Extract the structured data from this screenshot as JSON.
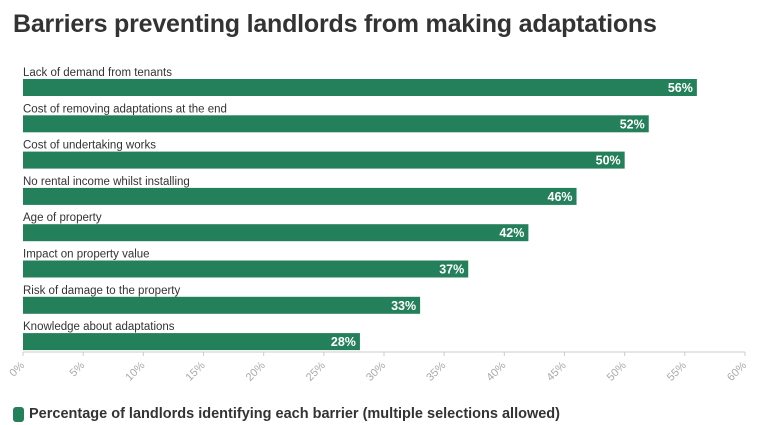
{
  "colors": {
    "bar": "#24805a",
    "text": "#333333",
    "axis": "#aaaaaa"
  },
  "chart_data": {
    "type": "bar",
    "orientation": "horizontal",
    "title": "Barriers preventing landlords from making adaptations",
    "categories": [
      "Lack of demand from tenants",
      "Cost of removing adaptations at the end",
      "Cost of undertaking works",
      "No rental income whilst installing",
      "Age of property",
      "Impact on property value",
      "Risk of damage to the property",
      "Knowledge about adaptations"
    ],
    "series": [
      {
        "name": "Percentage of landlords identifying each barrier (multiple selections allowed)",
        "values": [
          56,
          52,
          50,
          46,
          42,
          37,
          33,
          28
        ],
        "labels": [
          "56%",
          "52%",
          "50%",
          "46%",
          "42%",
          "37%",
          "33%",
          "28%"
        ]
      }
    ],
    "xlim": [
      0,
      60
    ],
    "xticks": [
      "0%",
      "5%",
      "10%",
      "15%",
      "20%",
      "25%",
      "30%",
      "35%",
      "40%",
      "45%",
      "50%",
      "55%",
      "60%"
    ],
    "grid": false,
    "legend": "bottom-left"
  }
}
